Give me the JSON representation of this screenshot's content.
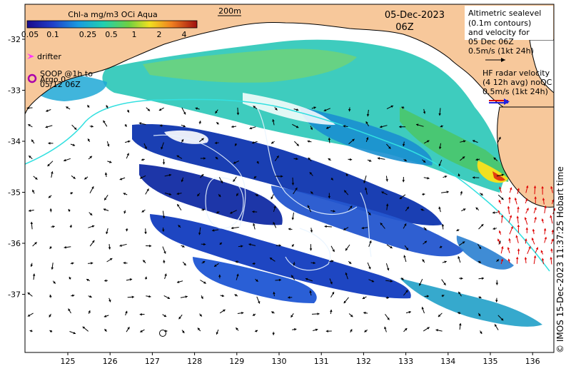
{
  "map": {
    "date": "05-Dec-2023",
    "time": "06Z",
    "scale_bar_label": "200m",
    "colorbar": {
      "title": "Chl-a mg/m3 OCi Aqua",
      "ticks": [
        "0.05",
        "0.1",
        "0.25",
        "0.5",
        "1",
        "2",
        "4"
      ]
    },
    "legend": {
      "drifter": "drifter",
      "soop_line1": "SOOP @1h to",
      "soop_line2": "Argo 0",
      "soop_line3": "05/12 06Z",
      "altimetry": [
        "Altimetric sealevel",
        "(0.1m contours)",
        "and velocity for",
        "05 Dec 06Z",
        "0.5m/s (1kt 24h)"
      ],
      "hf_radar": [
        "HF radar velocity",
        "(4 12h avg) noQC",
        "0.5m/s (1kt 24h)"
      ]
    },
    "lon_ticks": [
      "125",
      "126",
      "127",
      "128",
      "129",
      "130",
      "131",
      "132",
      "133",
      "134",
      "135",
      "136"
    ],
    "lat_ticks": [
      "-32",
      "-33",
      "-34",
      "-35",
      "-36",
      "-37"
    ],
    "credit": "© IMOS 15-Dec-2023 11:37:25 Hobart time",
    "colors": {
      "land": "#f7c89b",
      "ocean": "#ffffff",
      "shelf_line": "#33e0e0",
      "hf_arrows": "#dd0000",
      "drifter": "#ff33ff",
      "soop": "#aa00aa"
    }
  }
}
